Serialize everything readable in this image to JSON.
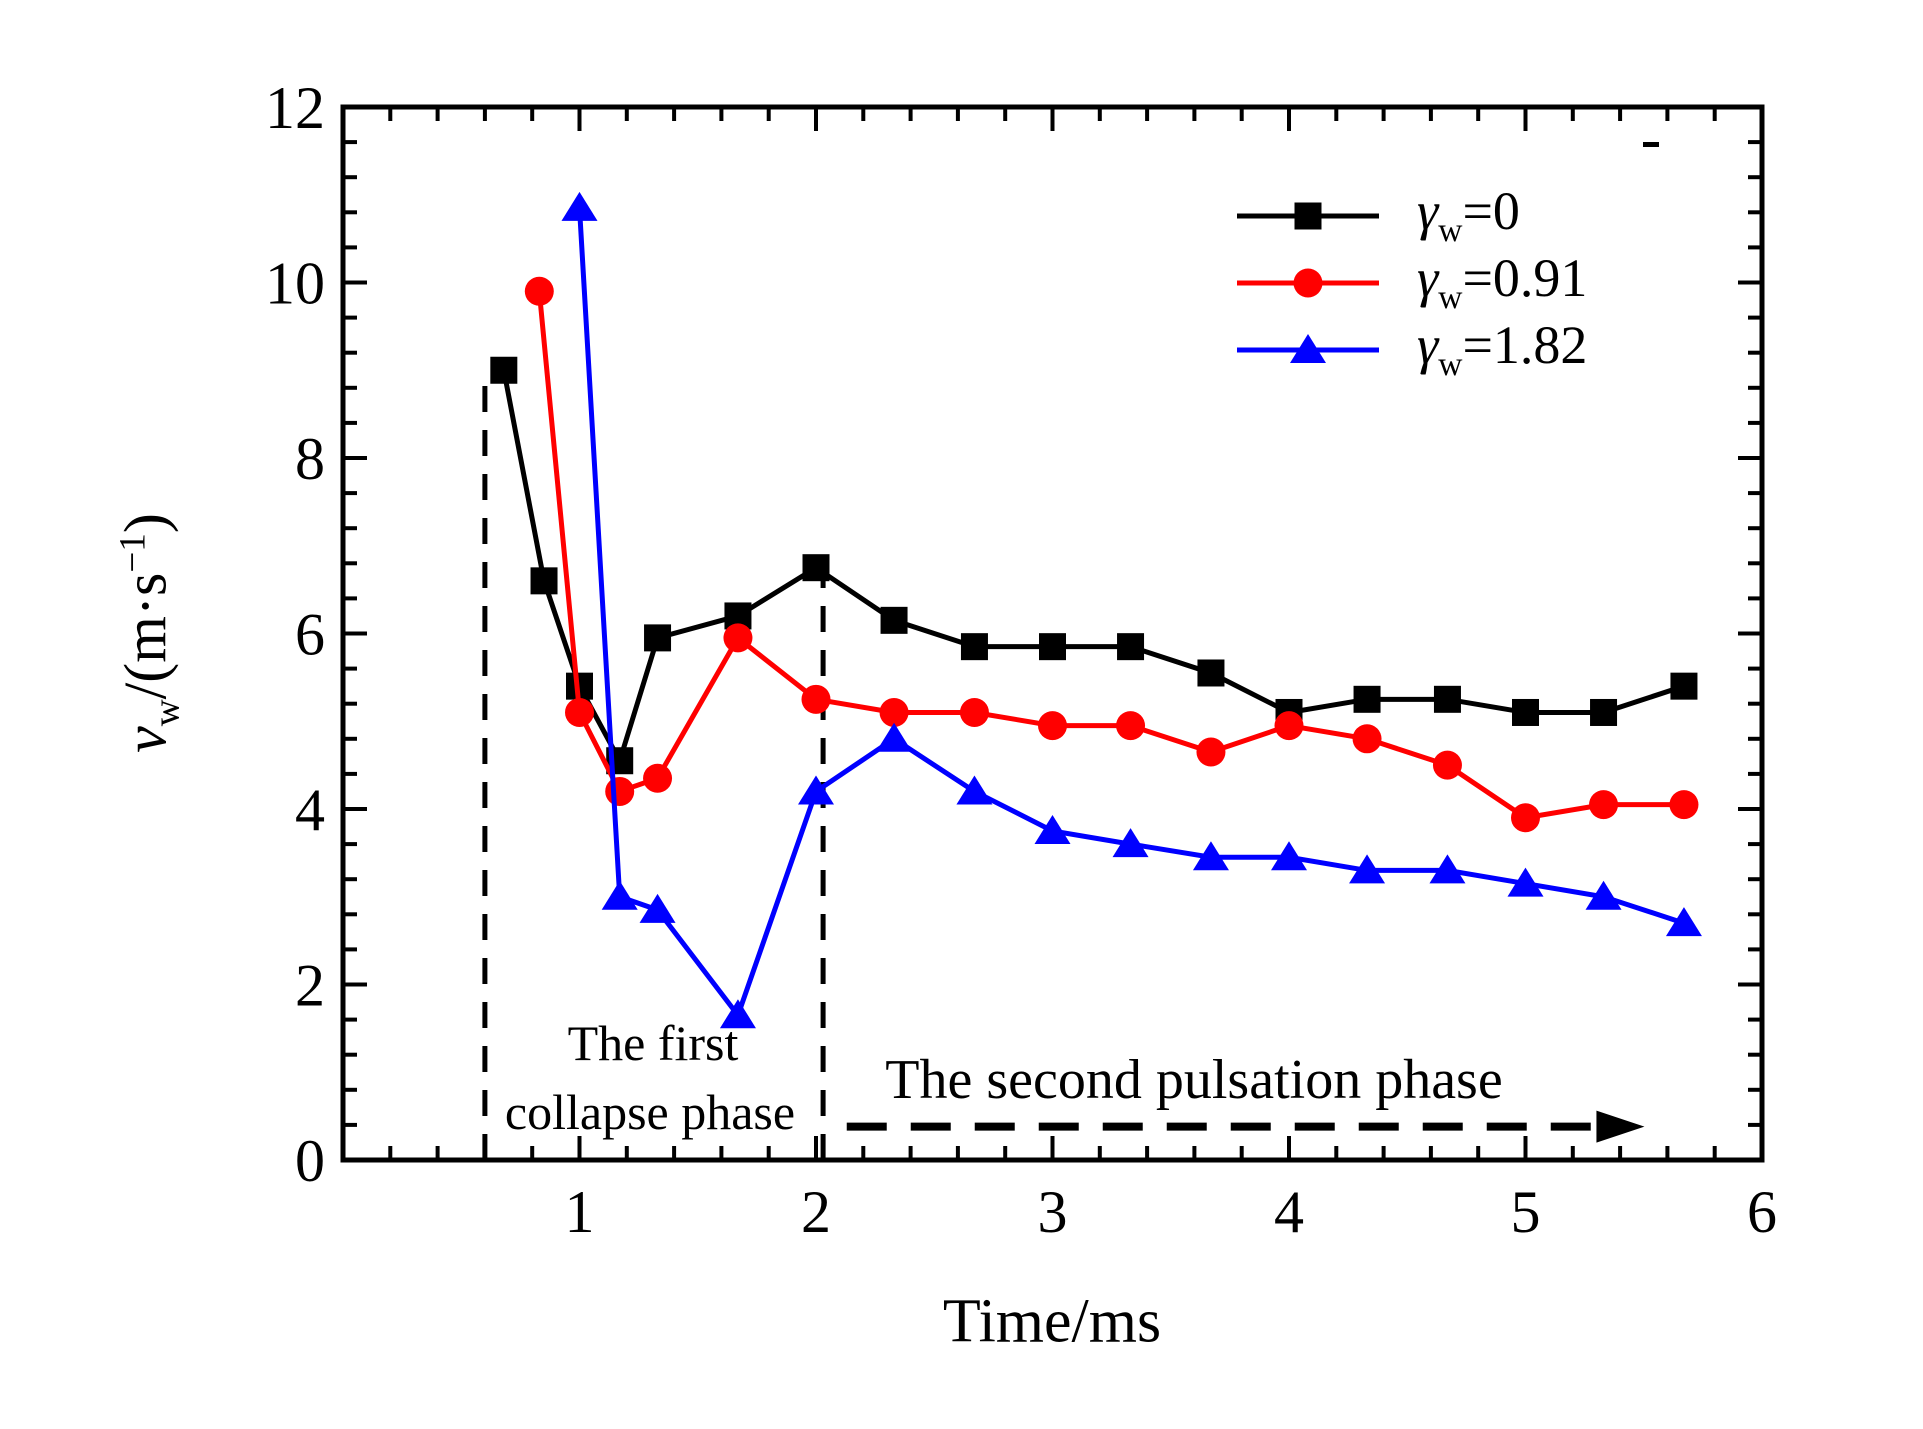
{
  "figure": {
    "x_axis_title": "Time/ms",
    "y_axis_title": {
      "var": "v",
      "var_sub": "w",
      "unit_open": "/(m·s",
      "unit_sup": "−1",
      "unit_close": ")"
    }
  },
  "legend": {
    "gamma_char": "γ",
    "gamma_sub": "w",
    "items": [
      {
        "suffix": "=0",
        "series_id": "gw0"
      },
      {
        "suffix": "=0.91",
        "series_id": "gw091"
      },
      {
        "suffix": "=1.82",
        "series_id": "gw182"
      }
    ]
  },
  "annotations": {
    "first_phase_line1": "The first",
    "first_phase_line2": "collapse phase",
    "second_phase": "The second pulsation phase"
  },
  "chart_data": {
    "type": "line",
    "title": "",
    "xlabel": "Time/ms",
    "ylabel": "v_w/(m·s⁻¹)",
    "xlim": [
      0,
      6
    ],
    "ylim": [
      0,
      12
    ],
    "grid": false,
    "legend_position": "upper right",
    "x_major_ticks": [
      1,
      2,
      3,
      4,
      5,
      6
    ],
    "x_tick_labels": [
      "1",
      "2",
      "3",
      "4",
      "5",
      "6"
    ],
    "x_minor_step": 0.2,
    "y_major_ticks": [
      0,
      2,
      4,
      6,
      8,
      10,
      12
    ],
    "y_tick_labels": [
      "0",
      "2",
      "4",
      "6",
      "8",
      "10",
      "12"
    ],
    "y_minor_step": 0.4,
    "series": [
      {
        "id": "gw0",
        "name": "γw=0",
        "color": "#000000",
        "marker": "square",
        "points": [
          [
            0.68,
            9.0
          ],
          [
            0.85,
            6.6
          ],
          [
            1.0,
            5.4
          ],
          [
            1.17,
            4.55
          ],
          [
            1.33,
            5.95
          ],
          [
            1.67,
            6.2
          ],
          [
            2.0,
            6.75
          ],
          [
            2.33,
            6.15
          ],
          [
            2.67,
            5.85
          ],
          [
            3.0,
            5.85
          ],
          [
            3.33,
            5.85
          ],
          [
            3.67,
            5.55
          ],
          [
            4.0,
            5.1
          ],
          [
            4.33,
            5.25
          ],
          [
            4.67,
            5.25
          ],
          [
            5.0,
            5.1
          ],
          [
            5.33,
            5.1
          ],
          [
            5.67,
            5.4
          ]
        ]
      },
      {
        "id": "gw091",
        "name": "γw=0.91",
        "color": "#ff0000",
        "marker": "circle",
        "points": [
          [
            0.83,
            9.9
          ],
          [
            1.0,
            5.1
          ],
          [
            1.17,
            4.2
          ],
          [
            1.33,
            4.35
          ],
          [
            1.67,
            5.95
          ],
          [
            2.0,
            5.25
          ],
          [
            2.33,
            5.1
          ],
          [
            2.67,
            5.1
          ],
          [
            3.0,
            4.95
          ],
          [
            3.33,
            4.95
          ],
          [
            3.67,
            4.65
          ],
          [
            4.0,
            4.95
          ],
          [
            4.33,
            4.8
          ],
          [
            4.67,
            4.5
          ],
          [
            5.0,
            3.9
          ],
          [
            5.33,
            4.05
          ],
          [
            5.67,
            4.05
          ]
        ]
      },
      {
        "id": "gw182",
        "name": "γw=1.82",
        "color": "#0000ff",
        "marker": "triangle",
        "points": [
          [
            1.0,
            10.85
          ],
          [
            1.17,
            3.0
          ],
          [
            1.33,
            2.85
          ],
          [
            1.67,
            1.65
          ],
          [
            2.0,
            4.2
          ],
          [
            2.33,
            4.8
          ],
          [
            2.67,
            4.2
          ],
          [
            3.0,
            3.75
          ],
          [
            3.33,
            3.6
          ],
          [
            3.67,
            3.45
          ],
          [
            4.0,
            3.45
          ],
          [
            4.33,
            3.3
          ],
          [
            4.67,
            3.3
          ],
          [
            5.0,
            3.15
          ],
          [
            5.33,
            3.0
          ],
          [
            5.67,
            2.7
          ]
        ]
      }
    ],
    "guides": [
      {
        "type": "vline",
        "x": 0.6,
        "y_from": 0,
        "y_to": 8.95,
        "style": "dashed",
        "color": "#000000"
      },
      {
        "type": "vline",
        "x": 2.03,
        "y_from": 0,
        "y_to": 6.67,
        "style": "dashed",
        "color": "#000000"
      },
      {
        "type": "arrow",
        "y": 0.38,
        "x_from": 2.13,
        "x_to": 5.3,
        "direction": "right",
        "style": "dashed",
        "color": "#000000"
      }
    ]
  }
}
